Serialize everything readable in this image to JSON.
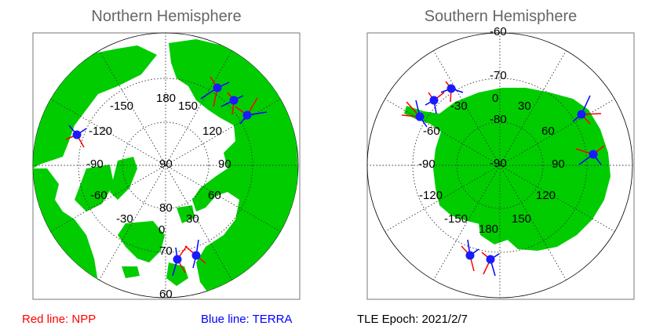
{
  "panels": {
    "north": {
      "title": "Northern Hemisphere",
      "lon_labels": [
        "180",
        "-150",
        "150",
        "-120",
        "120",
        "-90",
        "90",
        "-60",
        "60",
        "-30",
        "30",
        "0"
      ],
      "lat_labels": [
        "90",
        "80",
        "70",
        "60"
      ]
    },
    "south": {
      "title": "Southern Hemisphere",
      "lon_labels": [
        "0",
        "-30",
        "30",
        "-60",
        "60",
        "-90",
        "90",
        "-120",
        "120",
        "-150",
        "150",
        "180"
      ],
      "lat_labels": [
        "-60",
        "-70",
        "-80",
        "-90"
      ]
    }
  },
  "legend": {
    "npp": "Red line: NPP",
    "terra": "Blue line: TERRA",
    "tle_epoch": "TLE Epoch: 2021/2/7"
  },
  "colors": {
    "land": "#00cc00",
    "ocean": "#ffffff",
    "grid": "#333333",
    "npp": "#ff0000",
    "terra": "#0000ff",
    "station": "#1a1aff",
    "title": "#666666"
  }
}
